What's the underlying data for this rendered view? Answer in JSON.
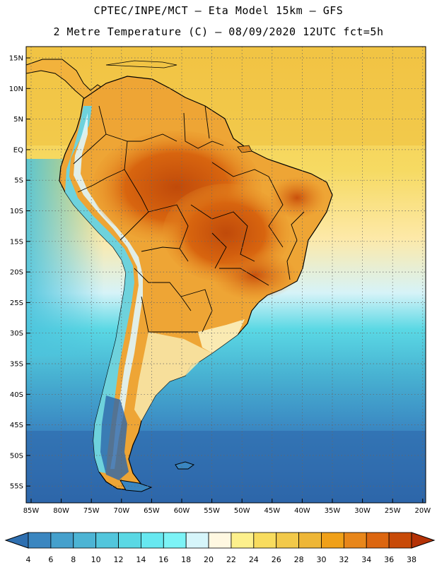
{
  "header": {
    "line1": "CPTEC/INPE/MCT –  Eta Model 15km – GFS",
    "line2": "2 Metre Temperature (C) – 08/09/2020 12UTC fct=5h"
  },
  "axes": {
    "lat_labels": [
      "15N",
      "10N",
      "5N",
      "EQ",
      "5S",
      "10S",
      "15S",
      "20S",
      "25S",
      "30S",
      "35S",
      "40S",
      "45S",
      "50S",
      "55S"
    ],
    "lon_labels": [
      "85W",
      "80W",
      "75W",
      "70W",
      "65W",
      "60W",
      "55W",
      "50W",
      "45W",
      "40W",
      "35W",
      "30W",
      "25W",
      "20W"
    ]
  },
  "colorbar": {
    "labels": [
      "4",
      "6",
      "8",
      "10",
      "12",
      "14",
      "16",
      "18",
      "20",
      "22",
      "24",
      "26",
      "28",
      "30",
      "32",
      "34",
      "36",
      "38"
    ],
    "colors": [
      "#2e6fb0",
      "#3a86c0",
      "#45a0cc",
      "#4cb4d4",
      "#52c6dc",
      "#5ad8e4",
      "#67e8f0",
      "#7cf3f6",
      "#d6f5fa",
      "#fff8e1",
      "#fdf08c",
      "#f8dc5e",
      "#f2c94a",
      "#eeb636",
      "#f0a018",
      "#e8861a",
      "#dc6610",
      "#c84a08",
      "#b43206"
    ]
  },
  "colors": {
    "ocean_north": "#f3c64a",
    "ocean_cold": "#2f6fb1",
    "land_hot": "#c8500e"
  }
}
